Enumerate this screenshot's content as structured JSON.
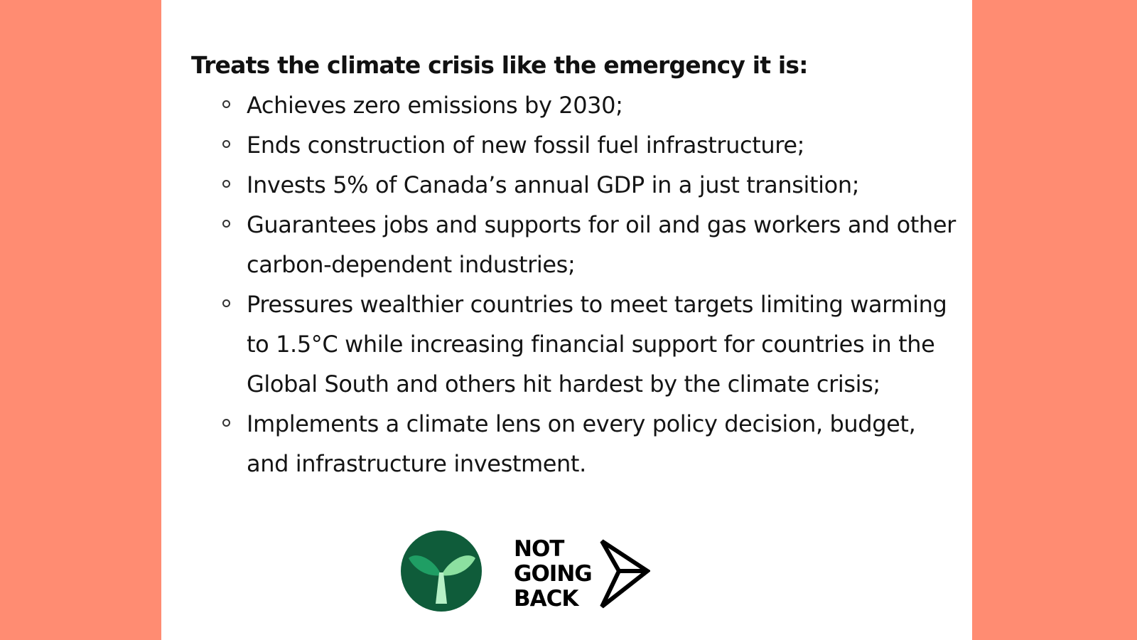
{
  "heading": "Treats the climate crisis like the emergency it is:",
  "items": [
    "Achieves zero emissions by 2030;",
    "Ends construction of new fossil fuel infrastructure;",
    "Invests 5% of Canada’s annual GDP in a just transition;",
    "Guarantees jobs and supports for oil and gas workers and other carbon-dependent industries;",
    "Pressures wealthier countries to meet targets limiting warming to 1.5°C while increasing financial support for countries in the Global South and others hit hardest by the climate crisis;",
    "Implements a climate lens on every policy decision, budget, and infrastructure investment."
  ],
  "logo_text": [
    "NOT",
    "GOING",
    "BACK"
  ],
  "colors": {
    "background": "#ff8c72",
    "panel": "#ffffff",
    "sprout_circle": "#0f5c3a",
    "sprout_leaf_dark": "#1f9e64",
    "sprout_leaf_light": "#8ce0a0"
  },
  "icons": {
    "sprout_logo": "sprout-logo-icon",
    "arrow_logo": "arrow-logo-icon"
  }
}
